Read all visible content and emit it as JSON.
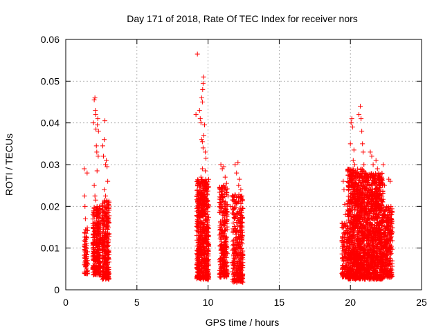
{
  "chart_data": {
    "type": "scatter",
    "title": "Day 171 of 2018, Rate Of TEC Index for receiver nors",
    "xlabel": "GPS time / hours",
    "ylabel": "ROTI / TECUs",
    "xlim": [
      0,
      25
    ],
    "ylim": [
      0,
      0.06
    ],
    "xticks": [
      0,
      5,
      10,
      15,
      20,
      25
    ],
    "yticks": [
      0,
      0.01,
      0.02,
      0.03,
      0.04,
      0.05,
      0.06
    ],
    "xtick_labels": [
      "0",
      "5",
      "10",
      "15",
      "20",
      "25"
    ],
    "ytick_labels": [
      "0",
      "0.01",
      "0.02",
      "0.03",
      "0.04",
      "0.05",
      "0.06"
    ],
    "grid": true,
    "marker": "+",
    "marker_color": "#ff0000",
    "series": [
      {
        "name": "ROTI",
        "points": [
          [
            1.3,
            0.029
          ],
          [
            1.32,
            0.0225
          ],
          [
            1.35,
            0.02
          ],
          [
            1.38,
            0.017
          ],
          [
            1.4,
            0.012
          ],
          [
            1.42,
            0.008
          ],
          [
            1.45,
            0.005
          ],
          [
            1.48,
            0.004
          ],
          [
            1.5,
            0.028
          ],
          [
            1.95,
            0.04
          ],
          [
            2.0,
            0.0455
          ],
          [
            2.05,
            0.046
          ],
          [
            2.08,
            0.043
          ],
          [
            2.1,
            0.042
          ],
          [
            2.12,
            0.0385
          ],
          [
            2.15,
            0.0345
          ],
          [
            2.18,
            0.033
          ],
          [
            2.2,
            0.0285
          ],
          [
            2.0,
            0.025
          ],
          [
            2.22,
            0.0395
          ],
          [
            2.25,
            0.041
          ],
          [
            2.28,
            0.032
          ],
          [
            2.3,
            0.038
          ],
          [
            2.05,
            0.0225
          ],
          [
            2.1,
            0.0215
          ],
          [
            2.2,
            0.02
          ],
          [
            2.25,
            0.019
          ],
          [
            2.6,
            0.0345
          ],
          [
            2.65,
            0.032
          ],
          [
            2.7,
            0.036
          ],
          [
            2.75,
            0.0405
          ],
          [
            2.8,
            0.03
          ],
          [
            2.85,
            0.031
          ],
          [
            2.9,
            0.0295
          ],
          [
            2.95,
            0.026
          ],
          [
            2.7,
            0.024
          ],
          [
            2.8,
            0.0225
          ],
          [
            9.15,
            0.042
          ],
          [
            9.25,
            0.0565
          ],
          [
            9.4,
            0.043
          ],
          [
            9.45,
            0.041
          ],
          [
            9.5,
            0.04
          ],
          [
            9.55,
            0.046
          ],
          [
            9.6,
            0.045
          ],
          [
            9.62,
            0.048
          ],
          [
            9.65,
            0.0495
          ],
          [
            9.68,
            0.051
          ],
          [
            9.55,
            0.036
          ],
          [
            9.6,
            0.0355
          ],
          [
            9.65,
            0.034
          ],
          [
            9.7,
            0.037
          ],
          [
            9.75,
            0.0395
          ],
          [
            9.8,
            0.033
          ],
          [
            9.85,
            0.0315
          ],
          [
            9.5,
            0.027
          ],
          [
            9.6,
            0.029
          ],
          [
            9.7,
            0.026
          ],
          [
            9.8,
            0.0285
          ],
          [
            10.9,
            0.03
          ],
          [
            11.0,
            0.029
          ],
          [
            11.1,
            0.0295
          ],
          [
            11.2,
            0.027
          ],
          [
            11.3,
            0.0255
          ],
          [
            11.4,
            0.0225
          ],
          [
            11.6,
            0.02
          ],
          [
            11.9,
            0.03
          ],
          [
            12.0,
            0.028
          ],
          [
            12.1,
            0.0305
          ],
          [
            12.15,
            0.025
          ],
          [
            12.2,
            0.0265
          ],
          [
            12.3,
            0.024
          ],
          [
            12.35,
            0.022
          ],
          [
            19.5,
            0.026
          ],
          [
            19.55,
            0.024
          ],
          [
            19.6,
            0.0205
          ],
          [
            19.65,
            0.018
          ],
          [
            19.7,
            0.016
          ],
          [
            20.0,
            0.035
          ],
          [
            20.05,
            0.04
          ],
          [
            20.1,
            0.041
          ],
          [
            20.15,
            0.039
          ],
          [
            20.2,
            0.031
          ],
          [
            20.25,
            0.0335
          ],
          [
            20.3,
            0.03
          ],
          [
            20.35,
            0.0285
          ],
          [
            20.6,
            0.042
          ],
          [
            20.7,
            0.044
          ],
          [
            20.75,
            0.041
          ],
          [
            20.8,
            0.038
          ],
          [
            20.85,
            0.035
          ],
          [
            20.9,
            0.033
          ],
          [
            20.95,
            0.03
          ],
          [
            21.4,
            0.033
          ],
          [
            21.5,
            0.032
          ],
          [
            21.6,
            0.03
          ],
          [
            21.8,
            0.031
          ],
          [
            21.9,
            0.029
          ],
          [
            22.0,
            0.028
          ],
          [
            22.2,
            0.027
          ],
          [
            22.3,
            0.03
          ],
          [
            22.4,
            0.025
          ],
          [
            22.7,
            0.0265
          ],
          [
            22.8,
            0.026
          ],
          [
            22.85,
            0.02
          ],
          [
            22.9,
            0.018
          ]
        ]
      }
    ],
    "clusters": [
      {
        "t_start": 1.3,
        "t_end": 1.55,
        "count": 70,
        "y_min": 0.0038,
        "y_max": 0.015
      },
      {
        "t_start": 1.9,
        "t_end": 2.45,
        "count": 300,
        "y_min": 0.0035,
        "y_max": 0.02
      },
      {
        "t_start": 2.55,
        "t_end": 3.05,
        "count": 300,
        "y_min": 0.0025,
        "y_max": 0.0215
      },
      {
        "t_start": 9.2,
        "t_end": 10.05,
        "count": 700,
        "y_min": 0.0025,
        "y_max": 0.0265
      },
      {
        "t_start": 10.8,
        "t_end": 11.35,
        "count": 300,
        "y_min": 0.003,
        "y_max": 0.025
      },
      {
        "t_start": 11.7,
        "t_end": 12.45,
        "count": 350,
        "y_min": 0.0018,
        "y_max": 0.023
      },
      {
        "t_start": 19.4,
        "t_end": 19.8,
        "count": 120,
        "y_min": 0.003,
        "y_max": 0.016
      },
      {
        "t_start": 19.8,
        "t_end": 21.0,
        "count": 1000,
        "y_min": 0.0025,
        "y_max": 0.029
      },
      {
        "t_start": 21.0,
        "t_end": 22.3,
        "count": 1000,
        "y_min": 0.0025,
        "y_max": 0.028
      },
      {
        "t_start": 22.3,
        "t_end": 22.95,
        "count": 300,
        "y_min": 0.003,
        "y_max": 0.02
      }
    ]
  }
}
